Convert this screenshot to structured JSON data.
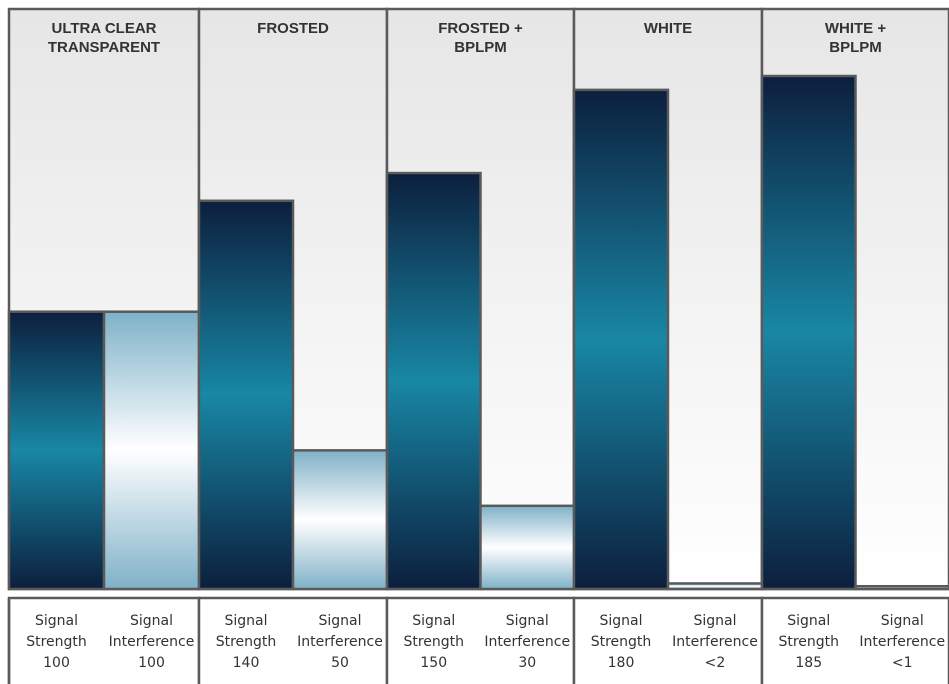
{
  "chart_data": {
    "type": "bar",
    "categories": [
      [
        "ULTRA CLEAR",
        "TRANSPARENT"
      ],
      [
        "FROSTED"
      ],
      [
        "FROSTED +",
        "BPLPM"
      ],
      [
        "WHITE"
      ],
      [
        "WHITE +",
        "BPLPM"
      ]
    ],
    "series": [
      {
        "name": "Signal Strength",
        "label_lines": [
          "Signal",
          "Strength"
        ],
        "values": [
          100,
          140,
          150,
          180,
          185
        ],
        "value_labels": [
          "100",
          "140",
          "150",
          "180",
          "185"
        ]
      },
      {
        "name": "Signal Interference",
        "label_lines": [
          "Signal",
          "Interference"
        ],
        "values": [
          100,
          50,
          30,
          2,
          1
        ],
        "value_labels": [
          "100",
          "50",
          "30",
          "<2",
          "<1"
        ]
      }
    ],
    "ylim": [
      0,
      185
    ],
    "grid": false,
    "colors": {
      "strength_dark": "#0c1f3d",
      "strength_mid": "#1887a5",
      "interference_light": "#7fb1c8",
      "panel_bg": "#e6e6e6",
      "border": "#5a5a5a"
    }
  }
}
